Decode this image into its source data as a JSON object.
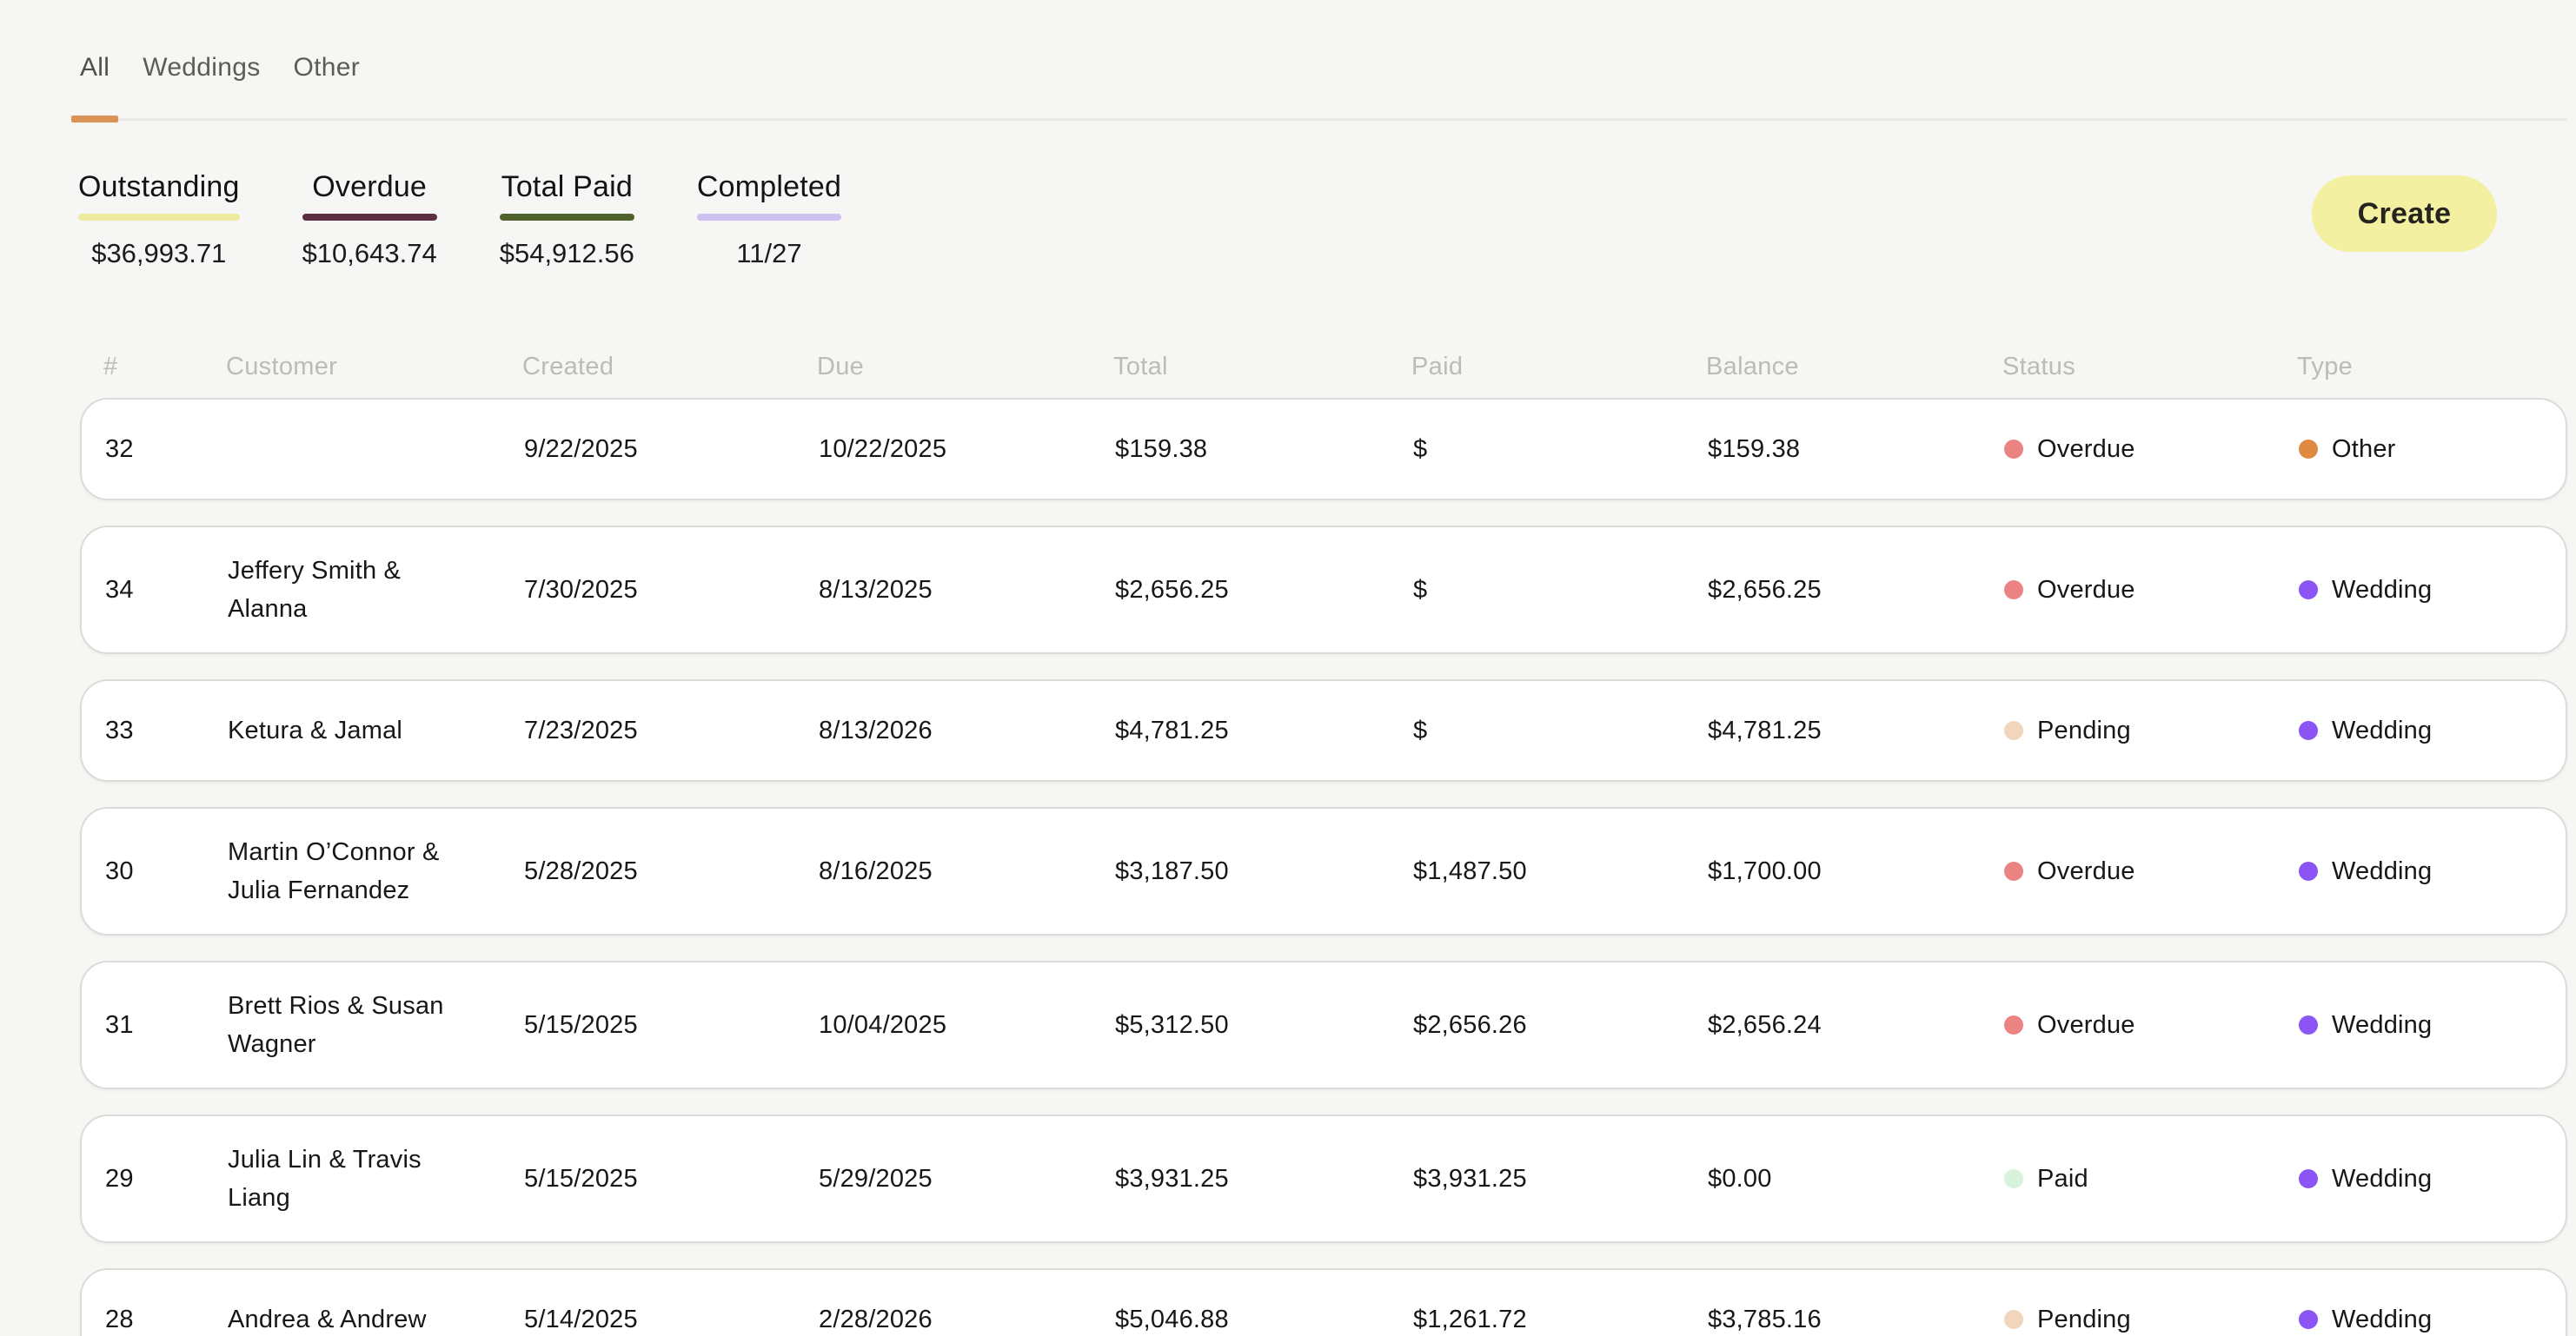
{
  "tabs": {
    "items": [
      {
        "label": "All",
        "active": true
      },
      {
        "label": "Weddings",
        "active": false
      },
      {
        "label": "Other",
        "active": false
      }
    ],
    "active_underline_color": "#dd9355"
  },
  "stats": [
    {
      "label": "Outstanding",
      "value": "$36,993.71",
      "underline_color": "#eeeaa0"
    },
    {
      "label": "Overdue",
      "value": "$10,643.74",
      "underline_color": "#5c2e42"
    },
    {
      "label": "Total Paid",
      "value": "$54,912.56",
      "underline_color": "#50612c"
    },
    {
      "label": "Completed",
      "value": "11/27",
      "underline_color": "#cfc0f2"
    }
  ],
  "create_button": {
    "label": "Create",
    "bg_color": "#f4f0a2"
  },
  "table": {
    "columns": [
      "#",
      "Customer",
      "Created",
      "Due",
      "Total",
      "Paid",
      "Balance",
      "Status",
      "Type"
    ],
    "status_colors": {
      "Overdue": "#ec8383",
      "Pending": "#f2d6bc",
      "Paid": "#d9f2dc"
    },
    "type_colors": {
      "Wedding": "#8b55f6",
      "Other": "#de8a40"
    },
    "rows": [
      {
        "number": "32",
        "customer": "",
        "created": "9/22/2025",
        "due": "10/22/2025",
        "total": "$159.38",
        "paid": "$",
        "balance": "$159.38",
        "status": "Overdue",
        "type": "Other"
      },
      {
        "number": "34",
        "customer": "Jeffery Smith &\nAlanna",
        "created": "7/30/2025",
        "due": "8/13/2025",
        "total": "$2,656.25",
        "paid": "$",
        "balance": "$2,656.25",
        "status": "Overdue",
        "type": "Wedding"
      },
      {
        "number": "33",
        "customer": "Ketura & Jamal",
        "created": "7/23/2025",
        "due": "8/13/2026",
        "total": "$4,781.25",
        "paid": "$",
        "balance": "$4,781.25",
        "status": "Pending",
        "type": "Wedding"
      },
      {
        "number": "30",
        "customer": "Martin O’Connor &\nJulia Fernandez",
        "created": "5/28/2025",
        "due": "8/16/2025",
        "total": "$3,187.50",
        "paid": "$1,487.50",
        "balance": "$1,700.00",
        "status": "Overdue",
        "type": "Wedding"
      },
      {
        "number": "31",
        "customer": "Brett Rios & Susan\nWagner",
        "created": "5/15/2025",
        "due": "10/04/2025",
        "total": "$5,312.50",
        "paid": "$2,656.26",
        "balance": "$2,656.24",
        "status": "Overdue",
        "type": "Wedding"
      },
      {
        "number": "29",
        "customer": "Julia Lin & Travis\nLiang",
        "created": "5/15/2025",
        "due": "5/29/2025",
        "total": "$3,931.25",
        "paid": "$3,931.25",
        "balance": "$0.00",
        "status": "Paid",
        "type": "Wedding"
      },
      {
        "number": "28",
        "customer": "Andrea & Andrew",
        "created": "5/14/2025",
        "due": "2/28/2026",
        "total": "$5,046.88",
        "paid": "$1,261.72",
        "balance": "$3,785.16",
        "status": "Pending",
        "type": "Wedding"
      }
    ]
  }
}
